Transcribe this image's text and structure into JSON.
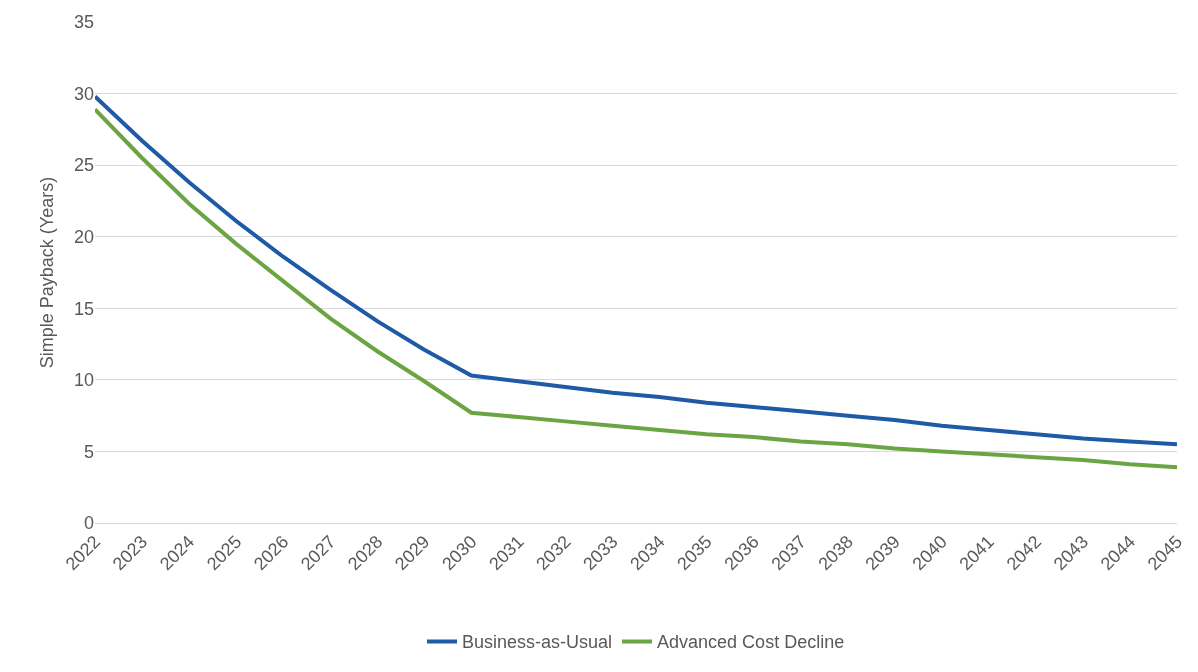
{
  "chart_data": {
    "type": "line",
    "ylabel": "Simple Payback (Years)",
    "categories": [
      "2022",
      "2023",
      "2024",
      "2025",
      "2026",
      "2027",
      "2028",
      "2029",
      "2030",
      "2031",
      "2032",
      "2033",
      "2034",
      "2035",
      "2036",
      "2037",
      "2038",
      "2039",
      "2040",
      "2041",
      "2042",
      "2043",
      "2044",
      "2045"
    ],
    "series": [
      {
        "name": "Business-as-Usual",
        "color": "#1f5aa6",
        "values": [
          29.8,
          26.7,
          23.8,
          21.1,
          18.6,
          16.3,
          14.1,
          12.1,
          10.3,
          9.9,
          9.5,
          9.1,
          8.8,
          8.4,
          8.1,
          7.8,
          7.5,
          7.2,
          6.8,
          6.5,
          6.2,
          5.9,
          5.7,
          5.5
        ]
      },
      {
        "name": "Advanced Cost Decline",
        "color": "#6aa443",
        "values": [
          28.9,
          25.5,
          22.3,
          19.5,
          16.9,
          14.3,
          12.0,
          9.9,
          7.7,
          7.4,
          7.1,
          6.8,
          6.5,
          6.2,
          6.0,
          5.7,
          5.5,
          5.2,
          5.0,
          4.8,
          4.6,
          4.4,
          4.1,
          3.9
        ]
      }
    ],
    "ylim": [
      0,
      35
    ],
    "yticks": [
      0,
      5,
      10,
      15,
      20,
      25,
      30,
      35
    ],
    "grid": "y",
    "legend": "bottom",
    "marker": "none",
    "line_style": "solid"
  }
}
